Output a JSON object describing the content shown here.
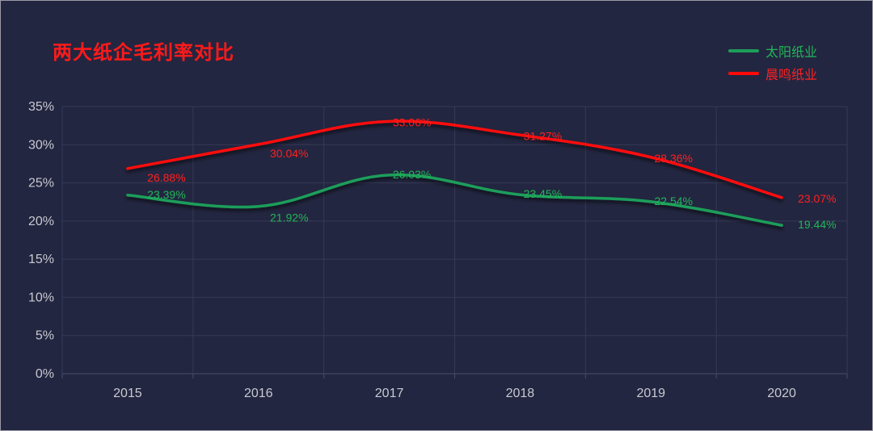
{
  "chart_data": {
    "type": "line",
    "title": "两大纸企毛利率对比",
    "categories": [
      "2015",
      "2016",
      "2017",
      "2018",
      "2019",
      "2020"
    ],
    "ylim": [
      0,
      35
    ],
    "yticks": [
      "0%",
      "5%",
      "10%",
      "15%",
      "20%",
      "25%",
      "30%",
      "35%"
    ],
    "grid": true,
    "legend_position": "top-right",
    "series": [
      {
        "name": "太阳纸业",
        "color": "#1e9e5a",
        "label_color": "#22b559",
        "values": [
          23.39,
          21.92,
          26.03,
          23.45,
          22.54,
          19.44
        ],
        "labels": [
          "23.39%",
          "21.92%",
          "26.03%",
          "23.45%",
          "22.54%",
          "19.44%"
        ]
      },
      {
        "name": "晨鸣纸业",
        "color": "#ff0a0a",
        "label_color": "#ff2020",
        "values": [
          26.88,
          30.04,
          33.06,
          31.27,
          28.36,
          23.07
        ],
        "labels": [
          "26.88%",
          "30.04%",
          "33.06%",
          "31.27%",
          "28.36%",
          "23.07%"
        ]
      }
    ]
  }
}
